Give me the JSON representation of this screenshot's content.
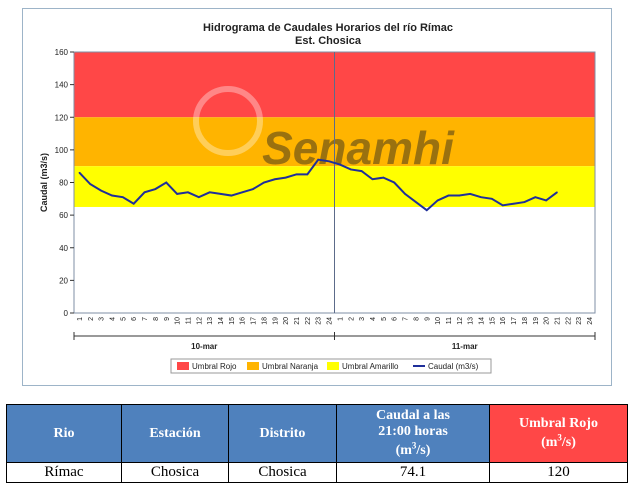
{
  "chart_data": {
    "type": "line",
    "title": "Hidrograma de Caudales Horarios del río Rímac",
    "subtitle": "Est. Chosica",
    "ylabel": "Caudal  (m3/s)",
    "ylim": [
      0,
      160
    ],
    "yticks": [
      0,
      20,
      40,
      60,
      80,
      100,
      120,
      140,
      160
    ],
    "day_labels": [
      "10-mar",
      "11-mar"
    ],
    "hour_ticks": [
      "1",
      "2",
      "3",
      "4",
      "5",
      "6",
      "7",
      "8",
      "9",
      "10",
      "11",
      "12",
      "13",
      "14",
      "15",
      "16",
      "17",
      "18",
      "19",
      "20",
      "21",
      "22",
      "23",
      "24"
    ],
    "bands": [
      {
        "name": "Umbral Rojo",
        "from": 120,
        "to": 160,
        "color": "#ff4747"
      },
      {
        "name": "Umbral Naranja",
        "from": 90,
        "to": 120,
        "color": "#ffb400"
      },
      {
        "name": "Umbral Amarillo",
        "from": 65,
        "to": 90,
        "color": "#ffff00"
      }
    ],
    "series": [
      {
        "name": "Caudal (m3/s)",
        "color": "#1f2f9a",
        "values": [
          86,
          79,
          75,
          72,
          71,
          67,
          74,
          76,
          80,
          73,
          74,
          71,
          74,
          73,
          72,
          74,
          76,
          80,
          82,
          83,
          85,
          85,
          94,
          93,
          91,
          88,
          87,
          82,
          83,
          80,
          73,
          68,
          63,
          69,
          72,
          72,
          73,
          71,
          70,
          66,
          67,
          68,
          71,
          69,
          74
        ]
      }
    ],
    "legend": [
      "Umbral Rojo",
      "Umbral Naranja",
      "Umbral Amarillo",
      "Caudal (m3/s)"
    ],
    "watermark": "Senamhi"
  },
  "table": {
    "headers": {
      "rio": "Rio",
      "estacion": "Estación",
      "distrito": "Distrito",
      "caudal_a": "Caudal a las",
      "caudal_b": "21:00 horas",
      "caudal_unit": "(m",
      "caudal_unit_sup": "3",
      "caudal_unit_end": "/s)",
      "umbral_a": "Umbral Rojo",
      "umbral_unit": "(m",
      "umbral_unit_sup": "3",
      "umbral_unit_end": "/s)"
    },
    "row": {
      "rio": "Rímac",
      "estacion": "Chosica",
      "distrito": "Chosica",
      "caudal": "74.1",
      "umbral": "120"
    }
  }
}
